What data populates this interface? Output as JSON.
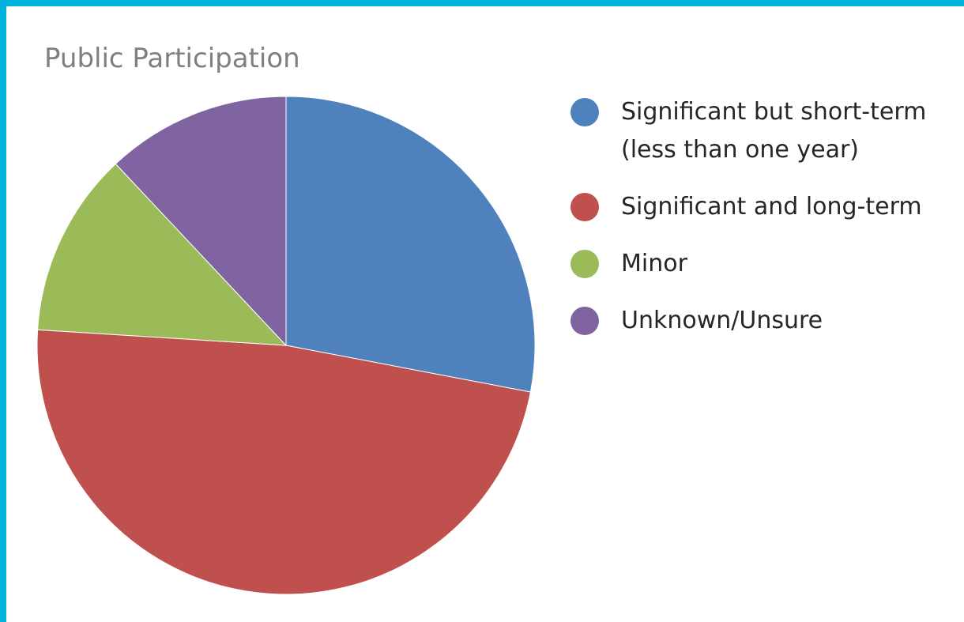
{
  "chart_data": {
    "type": "pie",
    "title": "Public Participation",
    "categories": [
      "Significant but short-term (less than one year)",
      "Significant and long-term",
      "Minor",
      "Unknown/Unsure"
    ],
    "values": [
      28,
      48,
      12,
      12
    ],
    "colors": [
      "#4f81bd",
      "#c0504d",
      "#9bbb59",
      "#8064a2"
    ],
    "legend": "right"
  }
}
